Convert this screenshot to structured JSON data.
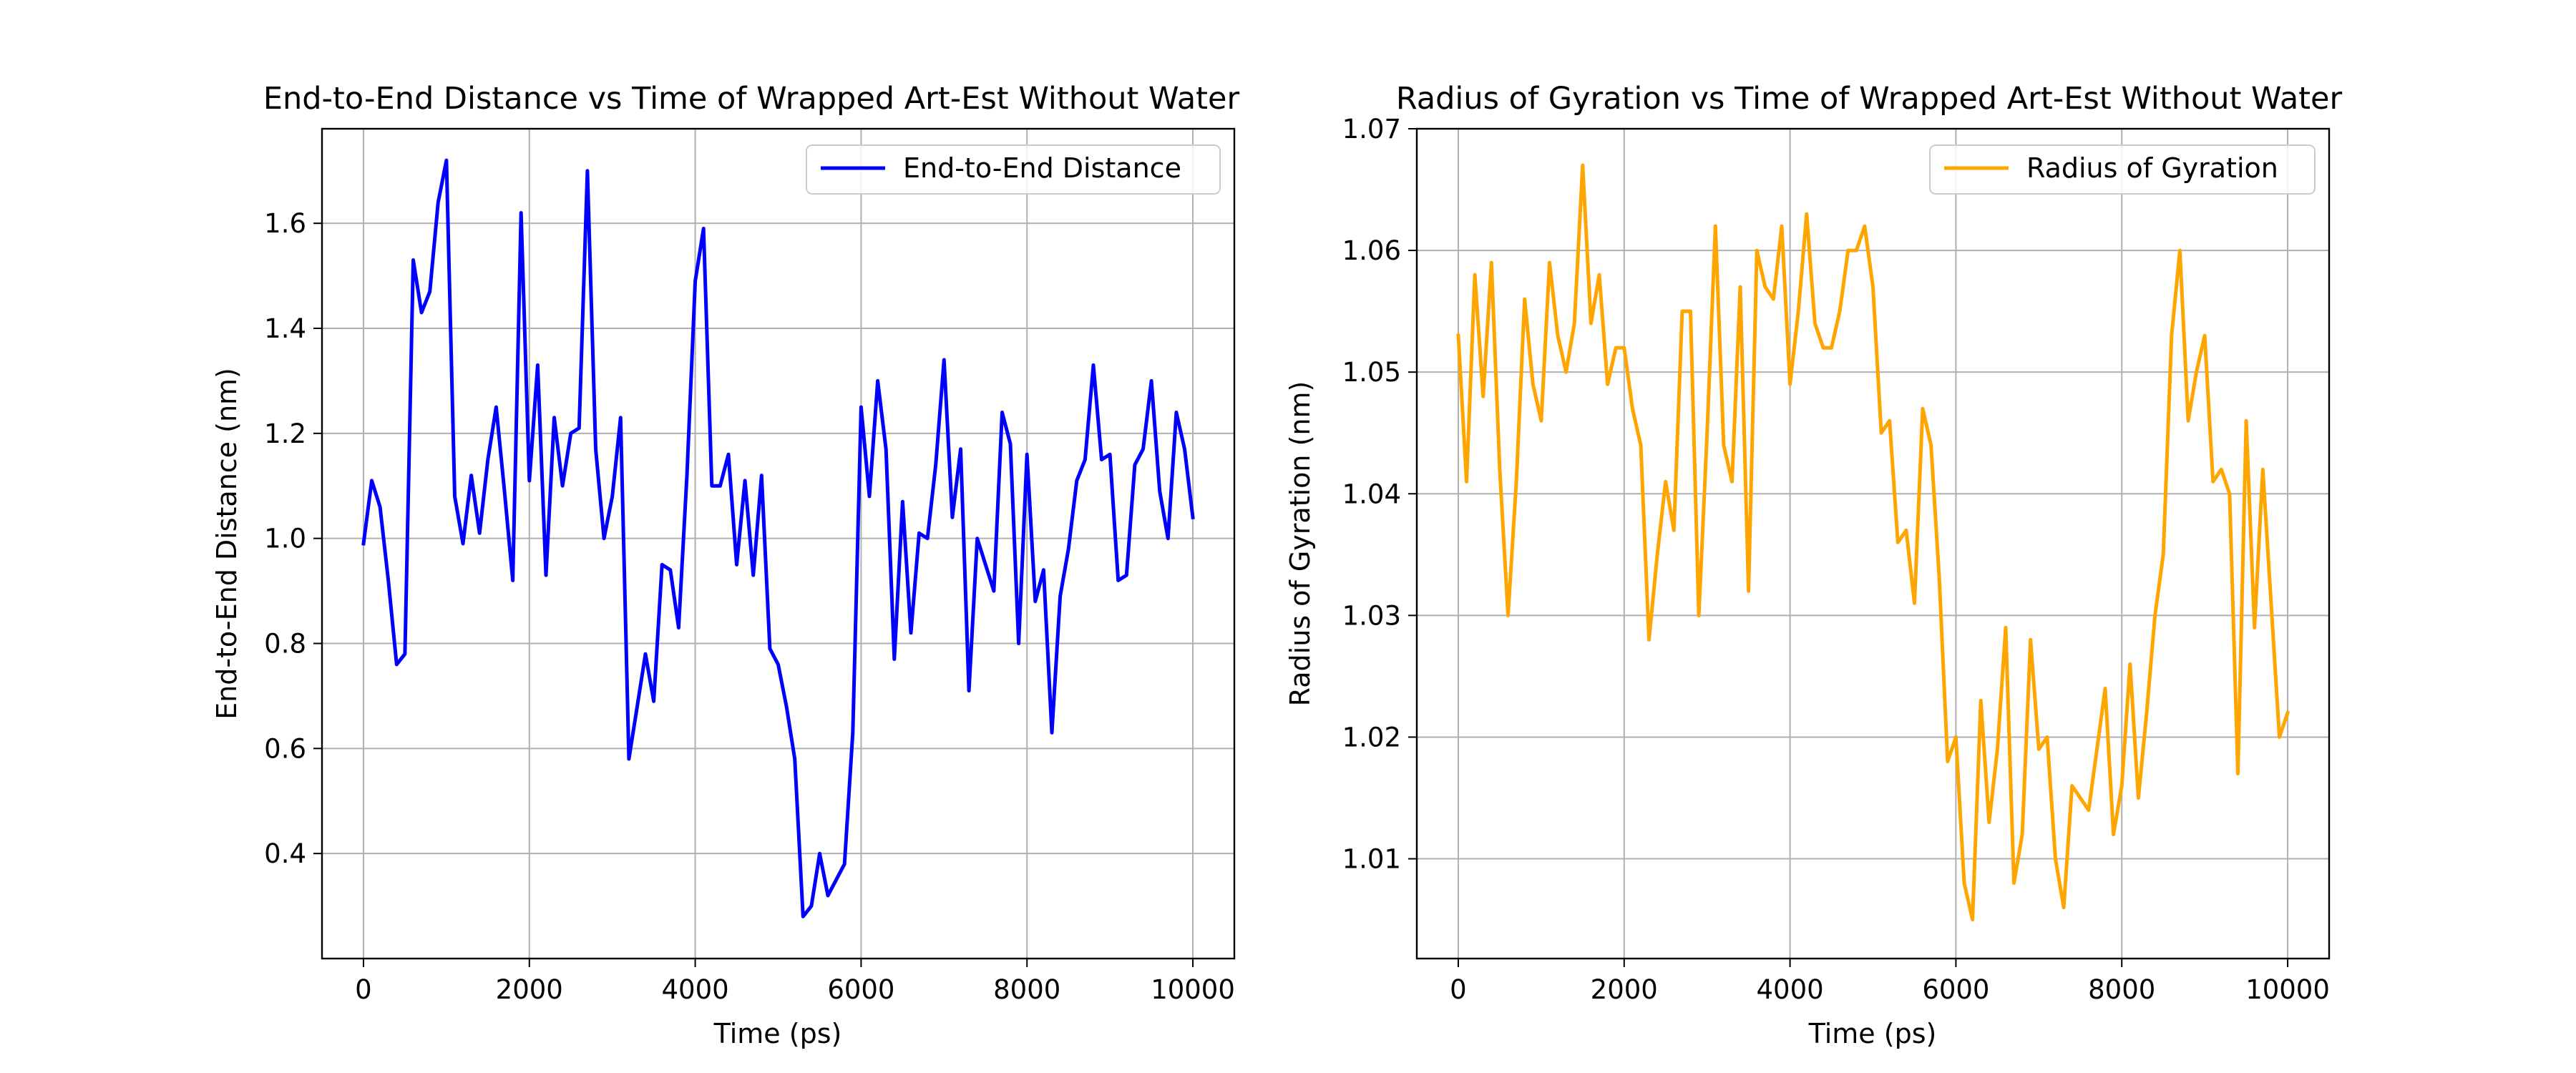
{
  "chart_data": [
    {
      "type": "line",
      "title": "End-to-End Distance vs Time of Wrapped Art-Est Without Water",
      "xlabel": "Time (ps)",
      "ylabel": "End-to-End Distance (nm)",
      "xlim": [
        -500,
        10500
      ],
      "ylim": [
        0.2,
        1.78
      ],
      "xticks": [
        "0",
        "2000",
        "4000",
        "6000",
        "8000",
        "10000"
      ],
      "xtick_values": [
        0,
        2000,
        4000,
        6000,
        8000,
        10000
      ],
      "yticks": [
        "0.4",
        "0.6",
        "0.8",
        "1.0",
        "1.2",
        "1.4",
        "1.6"
      ],
      "ytick_values": [
        0.4,
        0.6,
        0.8,
        1.0,
        1.2,
        1.4,
        1.6
      ],
      "grid": true,
      "legend_position": "top-right",
      "series": [
        {
          "name": "End-to-End Distance",
          "color": "#0000ff",
          "x": [
            0,
            100,
            200,
            300,
            400,
            500,
            600,
            700,
            800,
            900,
            1000,
            1100,
            1200,
            1300,
            1400,
            1500,
            1600,
            1700,
            1800,
            1900,
            2000,
            2100,
            2200,
            2300,
            2400,
            2500,
            2600,
            2700,
            2800,
            2900,
            3000,
            3100,
            3200,
            3300,
            3400,
            3500,
            3600,
            3700,
            3800,
            3900,
            4000,
            4100,
            4200,
            4300,
            4400,
            4500,
            4600,
            4700,
            4800,
            4900,
            5000,
            5100,
            5200,
            5300,
            5400,
            5500,
            5600,
            5700,
            5800,
            5900,
            6000,
            6100,
            6200,
            6300,
            6400,
            6500,
            6600,
            6700,
            6800,
            6900,
            7000,
            7100,
            7200,
            7300,
            7400,
            7500,
            7600,
            7700,
            7800,
            7900,
            8000,
            8100,
            8200,
            8300,
            8400,
            8500,
            8600,
            8700,
            8800,
            8900,
            9000,
            9100,
            9200,
            9300,
            9400,
            9500,
            9600,
            9700,
            9800,
            9900,
            10000
          ],
          "y": [
            0.99,
            1.11,
            1.06,
            0.92,
            0.76,
            0.78,
            1.53,
            1.43,
            1.47,
            1.64,
            1.72,
            1.08,
            0.99,
            1.12,
            1.01,
            1.15,
            1.25,
            1.09,
            0.92,
            1.62,
            1.11,
            1.33,
            0.93,
            1.23,
            1.1,
            1.2,
            1.21,
            1.7,
            1.17,
            1.0,
            1.08,
            1.23,
            0.58,
            0.68,
            0.78,
            0.69,
            0.95,
            0.94,
            0.83,
            1.12,
            1.49,
            1.59,
            1.1,
            1.1,
            1.16,
            0.95,
            1.11,
            0.93,
            1.12,
            0.79,
            0.76,
            0.68,
            0.58,
            0.28,
            0.3,
            0.4,
            0.32,
            0.35,
            0.38,
            0.63,
            1.25,
            1.08,
            1.3,
            1.17,
            0.77,
            1.07,
            0.82,
            1.01,
            1.0,
            1.14,
            1.34,
            1.04,
            1.17,
            0.71,
            1.0,
            0.95,
            0.9,
            1.24,
            1.18,
            0.8,
            1.16,
            0.88,
            0.94,
            0.63,
            0.89,
            0.98,
            1.11,
            1.15,
            1.33,
            1.15,
            1.16,
            0.92,
            0.93,
            1.14,
            1.17,
            1.3,
            1.09,
            1.0,
            1.24,
            1.17,
            1.04
          ]
        }
      ]
    },
    {
      "type": "line",
      "title": "Radius of Gyration vs Time of Wrapped Art-Est Without Water",
      "xlabel": "Time (ps)",
      "ylabel": "Radius of Gyration (nm)",
      "xlim": [
        -500,
        10500
      ],
      "ylim": [
        1.0018,
        1.07
      ],
      "xticks": [
        "0",
        "2000",
        "4000",
        "6000",
        "8000",
        "10000"
      ],
      "xtick_values": [
        0,
        2000,
        4000,
        6000,
        8000,
        10000
      ],
      "yticks": [
        "1.01",
        "1.02",
        "1.03",
        "1.04",
        "1.05",
        "1.06",
        "1.07"
      ],
      "ytick_values": [
        1.01,
        1.02,
        1.03,
        1.04,
        1.05,
        1.06,
        1.07
      ],
      "grid": true,
      "legend_position": "top-right",
      "series": [
        {
          "name": "Radius of Gyration",
          "color": "#ffa500",
          "x": [
            0,
            100,
            200,
            300,
            400,
            500,
            600,
            700,
            800,
            900,
            1000,
            1100,
            1200,
            1300,
            1400,
            1500,
            1600,
            1700,
            1800,
            1900,
            2000,
            2100,
            2200,
            2300,
            2400,
            2500,
            2600,
            2700,
            2800,
            2900,
            3000,
            3100,
            3200,
            3300,
            3400,
            3500,
            3600,
            3700,
            3800,
            3900,
            4000,
            4100,
            4200,
            4300,
            4400,
            4500,
            4600,
            4700,
            4800,
            4900,
            5000,
            5100,
            5200,
            5300,
            5400,
            5500,
            5600,
            5700,
            5800,
            5900,
            6000,
            6100,
            6200,
            6300,
            6400,
            6500,
            6600,
            6700,
            6800,
            6900,
            7000,
            7100,
            7200,
            7300,
            7400,
            7500,
            7600,
            7700,
            7800,
            7900,
            8000,
            8100,
            8200,
            8300,
            8400,
            8500,
            8600,
            8700,
            8800,
            8900,
            9000,
            9100,
            9200,
            9300,
            9400,
            9500,
            9600,
            9700,
            9800,
            9900,
            10000
          ],
          "y": [
            1.053,
            1.041,
            1.058,
            1.048,
            1.059,
            1.042,
            1.03,
            1.041,
            1.056,
            1.049,
            1.046,
            1.059,
            1.053,
            1.05,
            1.054,
            1.067,
            1.054,
            1.058,
            1.049,
            1.052,
            1.052,
            1.047,
            1.044,
            1.028,
            1.035,
            1.041,
            1.037,
            1.055,
            1.055,
            1.03,
            1.045,
            1.062,
            1.044,
            1.041,
            1.057,
            1.032,
            1.06,
            1.057,
            1.056,
            1.062,
            1.049,
            1.055,
            1.063,
            1.054,
            1.052,
            1.052,
            1.055,
            1.06,
            1.06,
            1.062,
            1.057,
            1.045,
            1.046,
            1.036,
            1.037,
            1.031,
            1.047,
            1.044,
            1.033,
            1.018,
            1.02,
            1.008,
            1.005,
            1.023,
            1.013,
            1.019,
            1.029,
            1.008,
            1.012,
            1.028,
            1.019,
            1.02,
            1.01,
            1.006,
            1.016,
            1.015,
            1.014,
            1.019,
            1.024,
            1.012,
            1.016,
            1.026,
            1.015,
            1.022,
            1.03,
            1.035,
            1.053,
            1.06,
            1.046,
            1.05,
            1.053,
            1.041,
            1.042,
            1.04,
            1.017,
            1.046,
            1.029,
            1.042,
            1.031,
            1.02,
            1.022
          ]
        }
      ]
    }
  ]
}
